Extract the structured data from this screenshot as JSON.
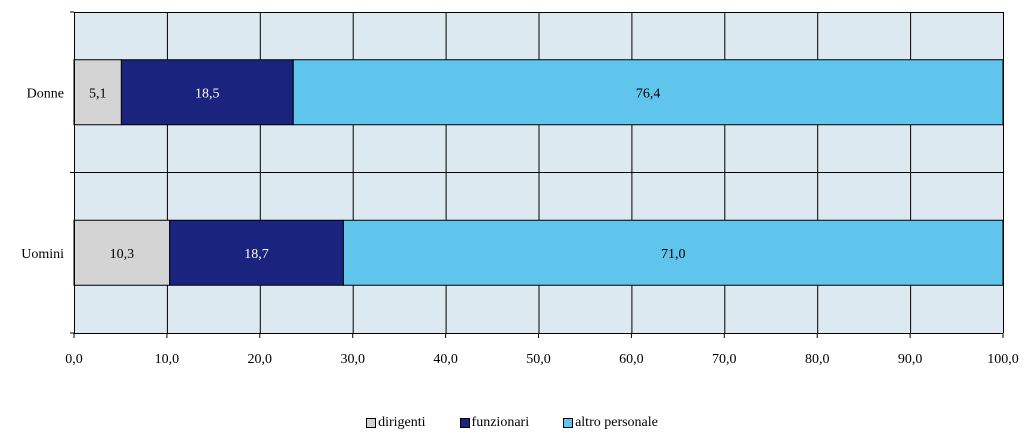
{
  "colors": {
    "plot_bg": "#DDE9F1",
    "grid": "#000000",
    "dirigenti": "#D4D4D4",
    "funzionari": "#1A237E",
    "altro_personale": "#5FC5EC"
  },
  "chart_data": {
    "type": "bar",
    "orientation": "horizontal",
    "stacked": true,
    "categories": [
      "Donne",
      "Uomini"
    ],
    "series": [
      {
        "name": "dirigenti",
        "values": [
          5.1,
          10.3
        ],
        "labels": [
          "5,1",
          "10,3"
        ],
        "label_color": "#000000"
      },
      {
        "name": "funzionari",
        "values": [
          18.5,
          18.7
        ],
        "labels": [
          "18,5",
          "18,7"
        ],
        "label_color": "#ffffff"
      },
      {
        "name": "altro personale",
        "values": [
          76.4,
          71.0
        ],
        "labels": [
          "76,4",
          "71,0"
        ],
        "label_color": "#000000"
      }
    ],
    "xlim": [
      0,
      100
    ],
    "xticks": [
      0,
      10,
      20,
      30,
      40,
      50,
      60,
      70,
      80,
      90,
      100
    ],
    "xtick_labels": [
      "0,0",
      "10,0",
      "20,0",
      "30,0",
      "40,0",
      "50,0",
      "60,0",
      "70,0",
      "80,0",
      "90,0",
      "100,0"
    ],
    "grid": true,
    "legend_position": "bottom",
    "title": "",
    "xlabel": "",
    "ylabel": ""
  }
}
